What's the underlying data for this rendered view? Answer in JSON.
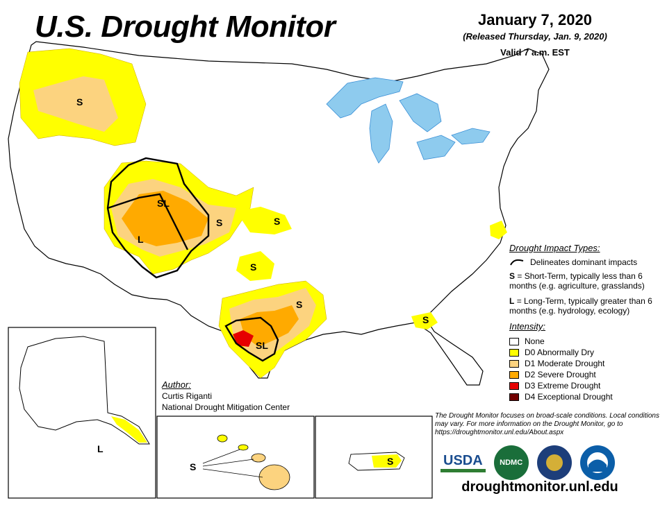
{
  "header": {
    "title": "U.S. Drought Monitor",
    "date": "January 7, 2020",
    "released": "(Released Thursday, Jan. 9, 2020)",
    "valid": "Valid 7 a.m. EST"
  },
  "map_labels": {
    "s_oregon": "S",
    "sl_utah": "SL",
    "l_arizona": "L",
    "s_colorado": "S",
    "s_kansas": "S",
    "s_oklahoma": "S",
    "s_texas_north": "S",
    "sl_texas": "SL",
    "s_florida": "S",
    "l_alaska": "L",
    "s_hawaii": "S",
    "s_puerto_rico": "S"
  },
  "legend": {
    "impact_heading": "Drought Impact Types:",
    "delineates": "Delineates dominant impacts",
    "short_term_key": "S",
    "short_term_text": "= Short-Term, typically less than 6 months (e.g. agriculture, grasslands)",
    "long_term_key": "L",
    "long_term_text": "= Long-Term, typically greater than 6 months (e.g. hydrology, ecology)",
    "intensity_heading": "Intensity:",
    "levels": [
      {
        "label": "None",
        "color": "#ffffff"
      },
      {
        "label": "D0 Abnormally Dry",
        "color": "#ffff00"
      },
      {
        "label": "D1 Moderate Drought",
        "color": "#fcd37f"
      },
      {
        "label": "D2 Severe Drought",
        "color": "#ffaa00"
      },
      {
        "label": "D3 Extreme Drought",
        "color": "#e60000"
      },
      {
        "label": "D4 Exceptional Drought",
        "color": "#730000"
      }
    ]
  },
  "author": {
    "heading": "Author:",
    "name": "Curtis Riganti",
    "org": "National Drought Mitigation Center"
  },
  "note": "The Drought Monitor focuses on broad-scale conditions. Local conditions may vary. For more information on the Drought Monitor, go to https://droughtmonitor.unl.edu/About.aspx",
  "logos": {
    "usda": "USDA",
    "ndmc": "NDMC"
  },
  "website": "droughtmonitor.unl.edu",
  "colors": {
    "water": "#8ecbee",
    "river": "#3a8fd6",
    "border": "#000000"
  }
}
